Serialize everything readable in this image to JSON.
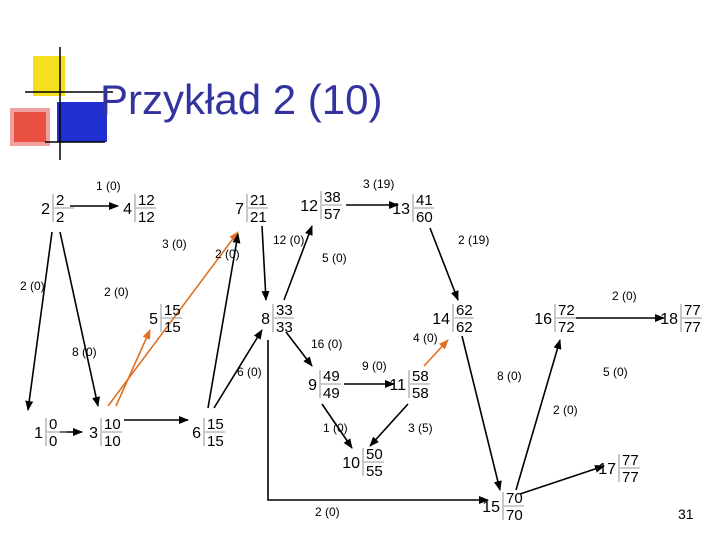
{
  "title": "Przykład 2 (10)",
  "page_number": "31",
  "colors": {
    "black_edge": "#000000",
    "orange_edge": "#e07020",
    "node_text": "#000000",
    "title": "#3333a0",
    "logo_yellow": "#f5e020",
    "logo_red": "#e85040",
    "logo_blue": "#2030d0"
  },
  "nodes": [
    {
      "id": "1",
      "es": "0",
      "ef": "0"
    },
    {
      "id": "2",
      "es": "2",
      "ef": "2"
    },
    {
      "id": "3",
      "es": "10",
      "ef": "10"
    },
    {
      "id": "4",
      "es": "12",
      "ef": "12"
    },
    {
      "id": "5",
      "es": "15",
      "ef": "15"
    },
    {
      "id": "6",
      "es": "15",
      "ef": "15"
    },
    {
      "id": "7",
      "es": "21",
      "ef": "21"
    },
    {
      "id": "8",
      "es": "33",
      "ef": "33"
    },
    {
      "id": "9",
      "es": "49",
      "ef": "49"
    },
    {
      "id": "10",
      "es": "50",
      "ef": "55"
    },
    {
      "id": "11",
      "es": "58",
      "ef": "58"
    },
    {
      "id": "12",
      "es": "38",
      "ef": "57"
    },
    {
      "id": "13",
      "es": "41",
      "ef": "60"
    },
    {
      "id": "14",
      "es": "62",
      "ef": "62"
    },
    {
      "id": "15",
      "es": "70",
      "ef": "70"
    },
    {
      "id": "16",
      "es": "72",
      "ef": "72"
    },
    {
      "id": "17",
      "es": "77",
      "ef": "77"
    },
    {
      "id": "18",
      "es": "77",
      "ef": "77"
    }
  ],
  "edges": [
    {
      "from": "2",
      "to": "4",
      "label": "1 (0)",
      "color": "black"
    },
    {
      "from": "2",
      "to": "1",
      "label": "2 (0)",
      "color": "black"
    },
    {
      "from": "2",
      "to": "3",
      "label": "2 (0)",
      "color": "black"
    },
    {
      "from": "1",
      "to": "3",
      "label": "8 (0)",
      "color": "black"
    },
    {
      "from": "3",
      "to": "7",
      "label": "3 (0)",
      "color": "orange"
    },
    {
      "from": "3",
      "to": "5",
      "label": "",
      "color": "orange"
    },
    {
      "from": "3",
      "to": "6",
      "label": "6 (0)",
      "color": "black"
    },
    {
      "from": "6",
      "to": "7",
      "label": "2 (0)",
      "color": "black"
    },
    {
      "from": "6",
      "to": "8",
      "label": "",
      "color": "black"
    },
    {
      "from": "7",
      "to": "8",
      "label": "12 (0)",
      "color": "black"
    },
    {
      "from": "8",
      "to": "12",
      "label": "5 (0)",
      "color": "black"
    },
    {
      "from": "12",
      "to": "13",
      "label": "3 (19)",
      "color": "black"
    },
    {
      "from": "13",
      "to": "14",
      "label": "2 (19)",
      "color": "black"
    },
    {
      "from": "8",
      "to": "9",
      "label": "16 (0)",
      "color": "black"
    },
    {
      "from": "8",
      "to": "15",
      "label": "2 (0)",
      "color": "black"
    },
    {
      "from": "9",
      "to": "11",
      "label": "9 (0)",
      "color": "black"
    },
    {
      "from": "9",
      "to": "10",
      "label": "1 (0)",
      "color": "black"
    },
    {
      "from": "11",
      "to": "14",
      "label": "4 (0)",
      "color": "orange"
    },
    {
      "from": "11",
      "to": "10",
      "label": "3 (5)",
      "color": "black"
    },
    {
      "from": "14",
      "to": "15",
      "label": "8 (0)",
      "color": "black"
    },
    {
      "from": "15",
      "to": "16",
      "label": "5 (0)",
      "color": "black"
    },
    {
      "from": "16",
      "to": "18",
      "label": "2 (0)",
      "color": "black"
    },
    {
      "from": "15",
      "to": "17",
      "label": "2 (0)",
      "color": "black"
    }
  ]
}
